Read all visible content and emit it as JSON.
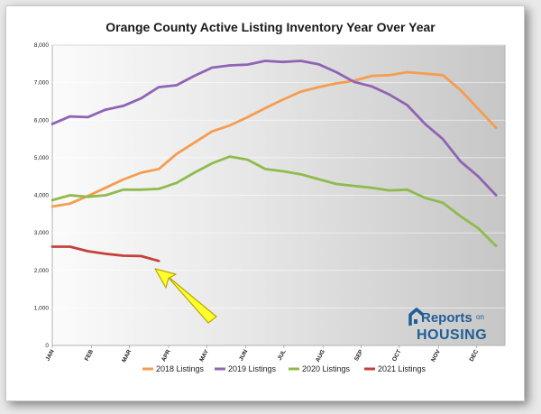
{
  "title": "Orange County Active Listing Inventory Year Over Year",
  "logo": {
    "line1": "Reports",
    "line1_small": "on",
    "line2": "HOUSING"
  },
  "colors": {
    "2018": "#f59d4f",
    "2019": "#8f64b4",
    "2020": "#8fbb4e",
    "2021": "#c5403a",
    "arrow": "#ffff2e",
    "arrow_stroke": "#b5a800"
  },
  "chart_data": {
    "type": "line",
    "title": "Orange County Active Listing Inventory Year Over Year",
    "xlabel": "",
    "ylabel": "",
    "ylim": [
      0,
      8000
    ],
    "yticks": [
      0,
      1000,
      2000,
      3000,
      4000,
      5000,
      6000,
      7000,
      8000
    ],
    "ytick_labels": [
      "0",
      "1,000",
      "2,000",
      "3,000",
      "4,000",
      "5,000",
      "6,000",
      "7,000",
      "8,000"
    ],
    "x_week_count": 52,
    "month_ticks": [
      {
        "label": "JAN",
        "week": 0
      },
      {
        "label": "FEB",
        "week": 4.4
      },
      {
        "label": "MAR",
        "week": 8.7
      },
      {
        "label": "APR",
        "week": 13.1
      },
      {
        "label": "MAY",
        "week": 17.4
      },
      {
        "label": "JUN",
        "week": 21.8
      },
      {
        "label": "JUL",
        "week": 26.1
      },
      {
        "label": "AUG",
        "week": 30.5
      },
      {
        "label": "SEP",
        "week": 34.8
      },
      {
        "label": "OCT",
        "week": 39.1
      },
      {
        "label": "NOV",
        "week": 43.5
      },
      {
        "label": "DEC",
        "week": 47.8
      }
    ],
    "grid": true,
    "legend_position": "bottom",
    "series": [
      {
        "name": "2018 Listings",
        "color_key": "2018",
        "points": [
          [
            0,
            3700
          ],
          [
            2,
            3780
          ],
          [
            4,
            3980
          ],
          [
            6,
            4200
          ],
          [
            8,
            4420
          ],
          [
            10,
            4600
          ],
          [
            12,
            4700
          ],
          [
            14,
            5100
          ],
          [
            16,
            5400
          ],
          [
            18,
            5700
          ],
          [
            20,
            5860
          ],
          [
            22,
            6080
          ],
          [
            24,
            6320
          ],
          [
            26,
            6550
          ],
          [
            28,
            6760
          ],
          [
            30,
            6880
          ],
          [
            32,
            6980
          ],
          [
            34,
            7050
          ],
          [
            36,
            7180
          ],
          [
            38,
            7200
          ],
          [
            40,
            7280
          ],
          [
            42,
            7240
          ],
          [
            44,
            7200
          ],
          [
            46,
            6800
          ],
          [
            48,
            6300
          ],
          [
            50,
            5800
          ]
        ]
      },
      {
        "name": "2019 Listings",
        "color_key": "2019",
        "points": [
          [
            0,
            5900
          ],
          [
            2,
            6100
          ],
          [
            4,
            6080
          ],
          [
            6,
            6280
          ],
          [
            8,
            6380
          ],
          [
            10,
            6580
          ],
          [
            12,
            6880
          ],
          [
            14,
            6930
          ],
          [
            16,
            7180
          ],
          [
            18,
            7400
          ],
          [
            20,
            7460
          ],
          [
            22,
            7480
          ],
          [
            24,
            7580
          ],
          [
            26,
            7550
          ],
          [
            28,
            7580
          ],
          [
            30,
            7490
          ],
          [
            32,
            7280
          ],
          [
            34,
            7020
          ],
          [
            36,
            6900
          ],
          [
            38,
            6680
          ],
          [
            40,
            6400
          ],
          [
            42,
            5900
          ],
          [
            44,
            5500
          ],
          [
            46,
            4900
          ],
          [
            48,
            4500
          ],
          [
            50,
            4000
          ]
        ]
      },
      {
        "name": "2020 Listings",
        "color_key": "2020",
        "points": [
          [
            0,
            3870
          ],
          [
            2,
            4000
          ],
          [
            4,
            3960
          ],
          [
            6,
            4000
          ],
          [
            8,
            4150
          ],
          [
            10,
            4150
          ],
          [
            12,
            4170
          ],
          [
            14,
            4330
          ],
          [
            16,
            4600
          ],
          [
            18,
            4850
          ],
          [
            20,
            5030
          ],
          [
            22,
            4950
          ],
          [
            24,
            4700
          ],
          [
            26,
            4640
          ],
          [
            28,
            4560
          ],
          [
            30,
            4430
          ],
          [
            32,
            4300
          ],
          [
            34,
            4250
          ],
          [
            36,
            4200
          ],
          [
            38,
            4130
          ],
          [
            40,
            4150
          ],
          [
            42,
            3930
          ],
          [
            44,
            3800
          ],
          [
            46,
            3440
          ],
          [
            48,
            3120
          ],
          [
            50,
            2650
          ]
        ]
      },
      {
        "name": "2021 Listings",
        "color_key": "2021",
        "points": [
          [
            0,
            2630
          ],
          [
            2,
            2630
          ],
          [
            4,
            2510
          ],
          [
            6,
            2440
          ],
          [
            8,
            2390
          ],
          [
            10,
            2380
          ],
          [
            12,
            2250
          ]
        ]
      }
    ],
    "annotations": [
      {
        "type": "arrow",
        "points_to": "latest 2021 listing count"
      },
      {
        "type": "logo",
        "text": "Reports on HOUSING"
      }
    ]
  }
}
